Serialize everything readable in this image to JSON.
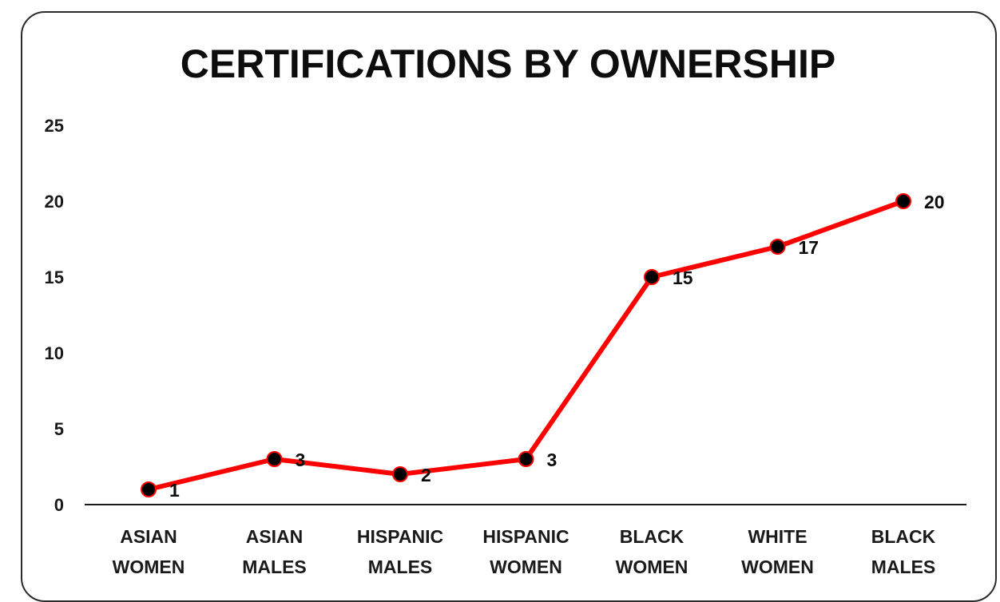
{
  "chart_data": {
    "type": "line",
    "title": "CERTIFICATIONS BY OWNERSHIP",
    "xlabel": "",
    "ylabel": "",
    "categories": [
      [
        "ASIAN",
        "WOMEN"
      ],
      [
        "ASIAN",
        "MALES"
      ],
      [
        "HISPANIC",
        "MALES"
      ],
      [
        "HISPANIC",
        "WOMEN"
      ],
      [
        "BLACK",
        "WOMEN"
      ],
      [
        "WHITE",
        "WOMEN"
      ],
      [
        "BLACK",
        "MALES"
      ]
    ],
    "series": [
      {
        "values": [
          1,
          3,
          2,
          3,
          15,
          17,
          20
        ],
        "color": "#ff0000",
        "marker_color": "#000000"
      }
    ],
    "ylim": [
      0,
      25
    ],
    "yticks": [
      0,
      5,
      10,
      15,
      20,
      25
    ],
    "data_labels": true,
    "grid": false,
    "legend": "none"
  }
}
